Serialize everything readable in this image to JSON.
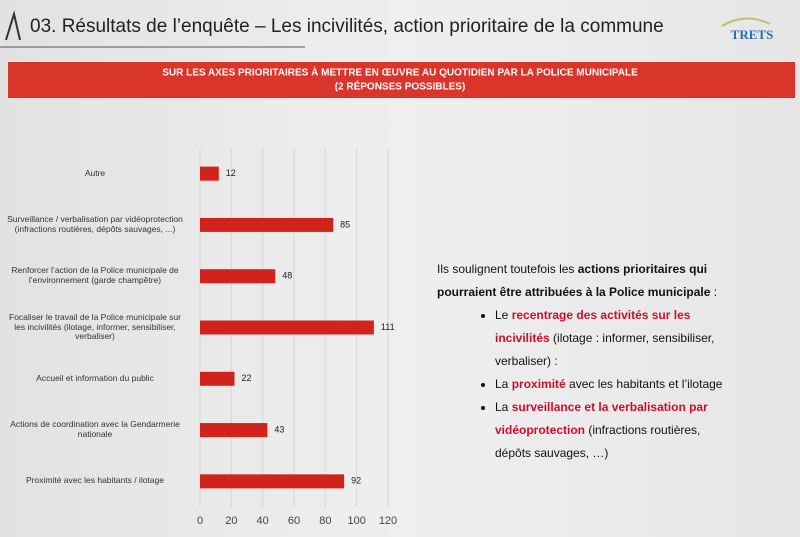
{
  "header": {
    "title": "03. Résultats de l’enquête – Les incivilités, action prioritaire de la commune",
    "logo": "TRETS"
  },
  "chart_data": {
    "type": "hbar",
    "title": "SUR LES AXES PRIORITAIRES À METTRE EN ŒUVRE AU QUOTIDIEN PAR LA POLICE MUNICIPALE",
    "subtitle": "(2 RÉPONSES POSSIBLES)",
    "categories": [
      "Autre",
      "Surveillance / verbalisation par vidéoprotection (infractions routières, dépôts sauvages, ...)",
      "Renforcer l’action de la Police municipale de l’environnement (garde champêtre)",
      "Focaliser le travail de la Police municipale sur les incivilités (ilotage, informer, sensibiliser, verbaliser)",
      "Accueil et information du public",
      "Actions de coordination avec la Gendarmerie nationale",
      "Proximité avec les habitants / ilotage"
    ],
    "values": [
      12,
      85,
      48,
      111,
      22,
      43,
      92
    ],
    "color": "#d1221b",
    "xlim": [
      0,
      120
    ],
    "xticks": [
      0,
      20,
      40,
      60,
      80,
      100,
      120
    ],
    "grid": true
  },
  "text_block": {
    "intro": [
      {
        "text": "Ils soulignent toutefois les ",
        "style": "plain"
      },
      {
        "text": "actions prioritaires qui pourraient être attribuées à la Police municipale",
        "style": "bold"
      },
      {
        "text": " :",
        "style": "plain"
      }
    ],
    "bullets": [
      [
        {
          "text": "Le ",
          "style": "plain"
        },
        {
          "text": "recentrage des activités sur les incivilités",
          "style": "red"
        },
        {
          "text": " (ilotage : informer, sensibiliser, verbaliser) :",
          "style": "plain"
        }
      ],
      [
        {
          "text": "La ",
          "style": "plain"
        },
        {
          "text": "proximité",
          "style": "red"
        },
        {
          "text": " avec les habitants et l’ilotage",
          "style": "plain"
        }
      ],
      [
        {
          "text": "La ",
          "style": "plain"
        },
        {
          "text": "surveillance et la verbalisation par vidéoprotection",
          "style": "red"
        },
        {
          "text": " (infractions routières, dépôts sauvages, …)",
          "style": "plain"
        }
      ]
    ]
  }
}
